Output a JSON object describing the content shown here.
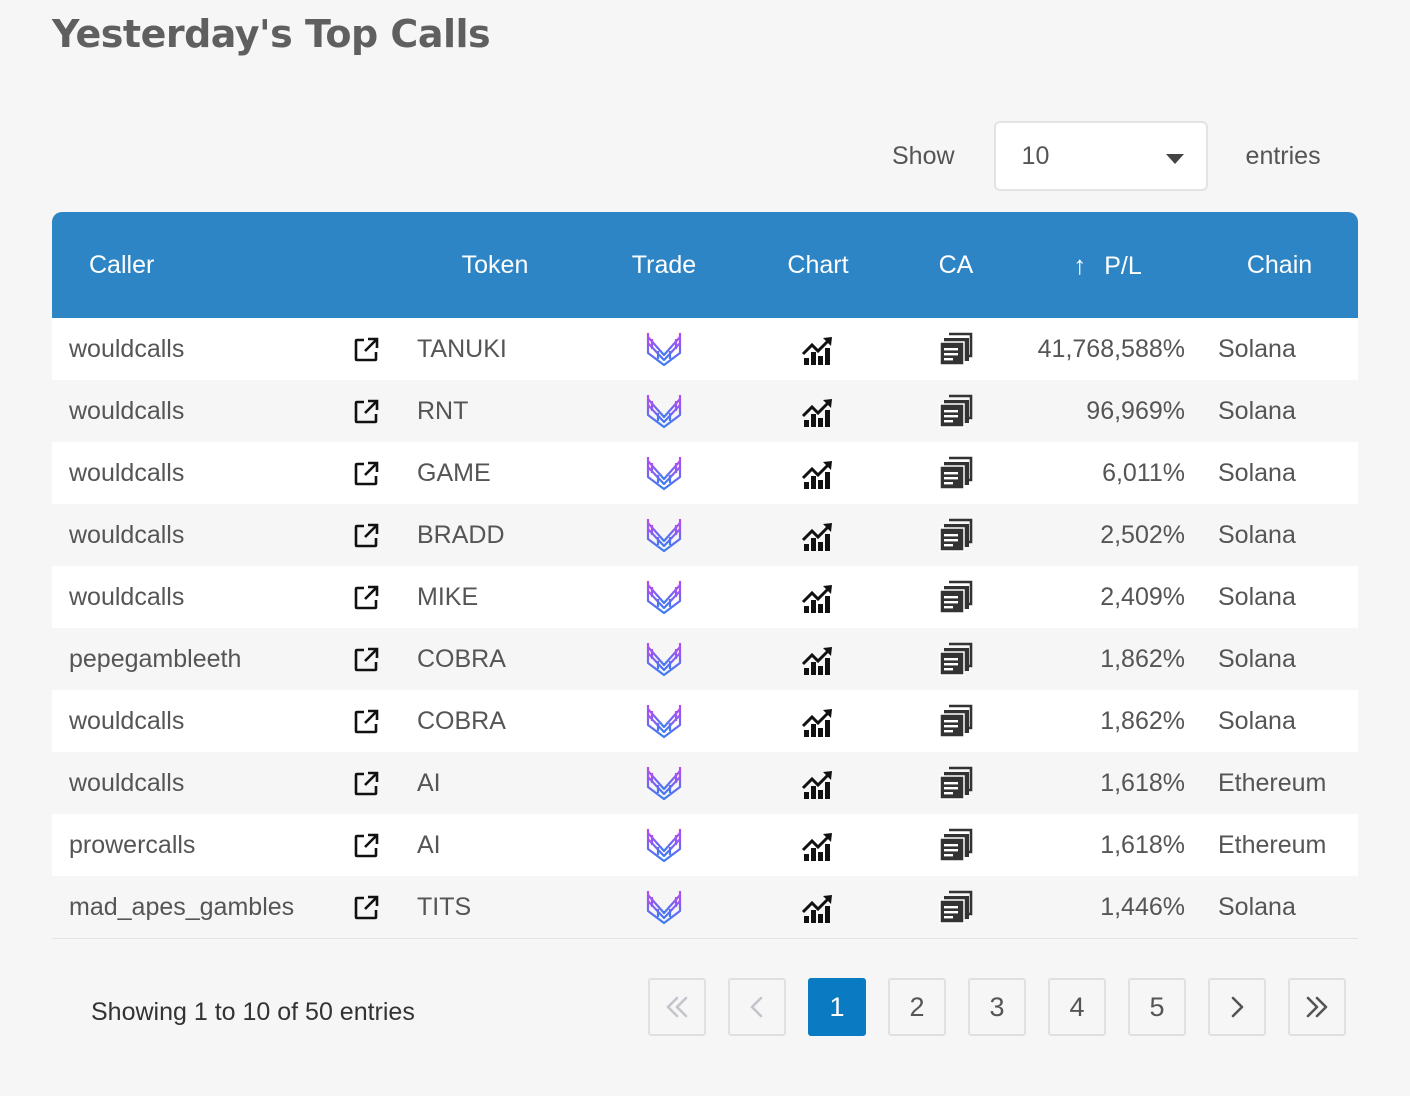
{
  "page": {
    "title": "Yesterday's Top Calls"
  },
  "length_menu": {
    "show_label": "Show",
    "selected": "10",
    "entries_label": "entries"
  },
  "table": {
    "columns": {
      "caller": "Caller",
      "token": "Token",
      "trade": "Trade",
      "chart": "Chart",
      "ca": "CA",
      "pl": "P/L",
      "chain": "Chain"
    },
    "sort_indicator": "↑",
    "rows": [
      {
        "caller": "wouldcalls",
        "token": "TANUKI",
        "pl": "41,768,588%",
        "chain": "Solana"
      },
      {
        "caller": "wouldcalls",
        "token": "RNT",
        "pl": "96,969%",
        "chain": "Solana"
      },
      {
        "caller": "wouldcalls",
        "token": "GAME",
        "pl": "6,011%",
        "chain": "Solana"
      },
      {
        "caller": "wouldcalls",
        "token": "BRADD",
        "pl": "2,502%",
        "chain": "Solana"
      },
      {
        "caller": "wouldcalls",
        "token": "MIKE",
        "pl": "2,409%",
        "chain": "Solana"
      },
      {
        "caller": "pepegambleeth",
        "token": "COBRA",
        "pl": "1,862%",
        "chain": "Solana"
      },
      {
        "caller": "wouldcalls",
        "token": "COBRA",
        "pl": "1,862%",
        "chain": "Solana"
      },
      {
        "caller": "wouldcalls",
        "token": "AI",
        "pl": "1,618%",
        "chain": "Ethereum"
      },
      {
        "caller": "prowercalls",
        "token": "AI",
        "pl": "1,618%",
        "chain": "Ethereum"
      },
      {
        "caller": "mad_apes_gambles",
        "token": "TITS",
        "pl": "1,446%",
        "chain": "Solana"
      }
    ],
    "row_icons": {
      "caller_link": "external-link-icon",
      "trade": "trade-platform-logo-icon",
      "chart": "chart-up-icon",
      "ca": "copy-contract-icon"
    }
  },
  "info": "Showing 1 to 10 of 50 entries",
  "pagination": {
    "first": "first-page-icon",
    "previous": "previous-page-icon",
    "pages": [
      "1",
      "2",
      "3",
      "4",
      "5"
    ],
    "current": "1",
    "next": "next-page-icon",
    "last": "last-page-icon"
  },
  "colors": {
    "header_bg": "#2e85c5",
    "active_page": "#0a7bc2",
    "trade_logo": [
      "#b44df0",
      "#3d7cf2"
    ]
  }
}
